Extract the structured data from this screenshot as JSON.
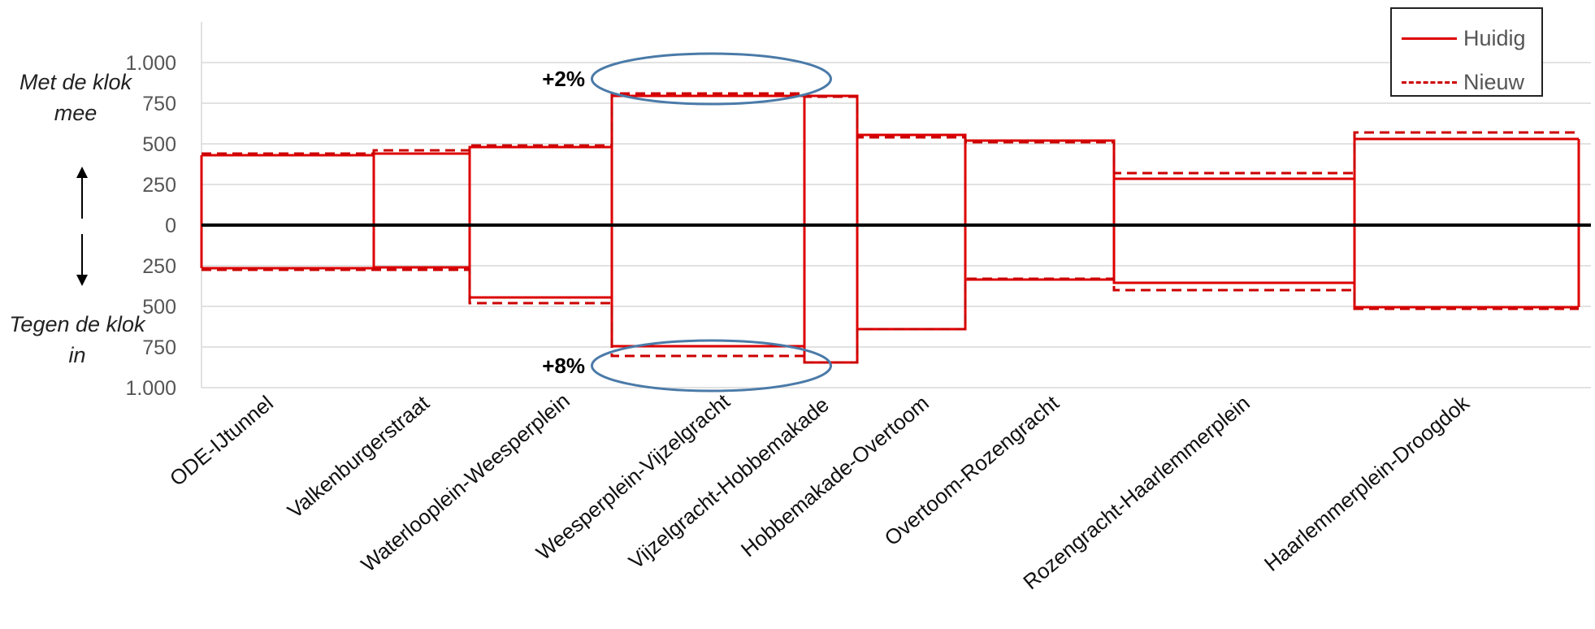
{
  "chart_data": {
    "type": "step-range",
    "categories": [
      "ODE-IJtunnel",
      "Valkenburgerstraat",
      "Waterlooplein-Weesperplein",
      "Weesperplein-Vijzelgracht",
      "Vijzelgracht-Hobbemakade",
      "Hobbemakade-Overtoom",
      "Overtoom-Rozengracht",
      "Rozengracht-Haarlemmerplein",
      "Haarlemmerplein-Droogdok"
    ],
    "series": [
      {
        "name": "Huidig",
        "clockwise": [
          430,
          440,
          480,
          795,
          795,
          555,
          520,
          285,
          530
        ],
        "counterclockwise": [
          265,
          260,
          445,
          745,
          845,
          640,
          335,
          355,
          505
        ]
      },
      {
        "name": "Nieuw",
        "clockwise": [
          440,
          460,
          490,
          810,
          790,
          540,
          510,
          320,
          570
        ],
        "counterclockwise": [
          275,
          275,
          480,
          805,
          845,
          640,
          330,
          400,
          515
        ]
      }
    ],
    "ytick_labels": [
      "1.000",
      "750",
      "500",
      "250",
      "0",
      "250",
      "500",
      "750",
      "1.000"
    ],
    "ylim": [
      -1000,
      1000
    ],
    "grid": true,
    "legend_position": "top-right",
    "upper_label": "Met de klok mee",
    "lower_label": "Tegen de klok in",
    "annotations": [
      {
        "text": "+2%",
        "category": "Weesperplein-Vijzelgracht",
        "side": "clockwise"
      },
      {
        "text": "+8%",
        "category": "Weesperplein-Vijzelgracht",
        "side": "counterclockwise"
      }
    ],
    "colors": {
      "huidig": "#dd0000",
      "nieuw": "#cc0000",
      "annotation_ellipse": "#4a7aa8",
      "grid": "#d9d9d9",
      "zero_line": "#000000"
    }
  }
}
